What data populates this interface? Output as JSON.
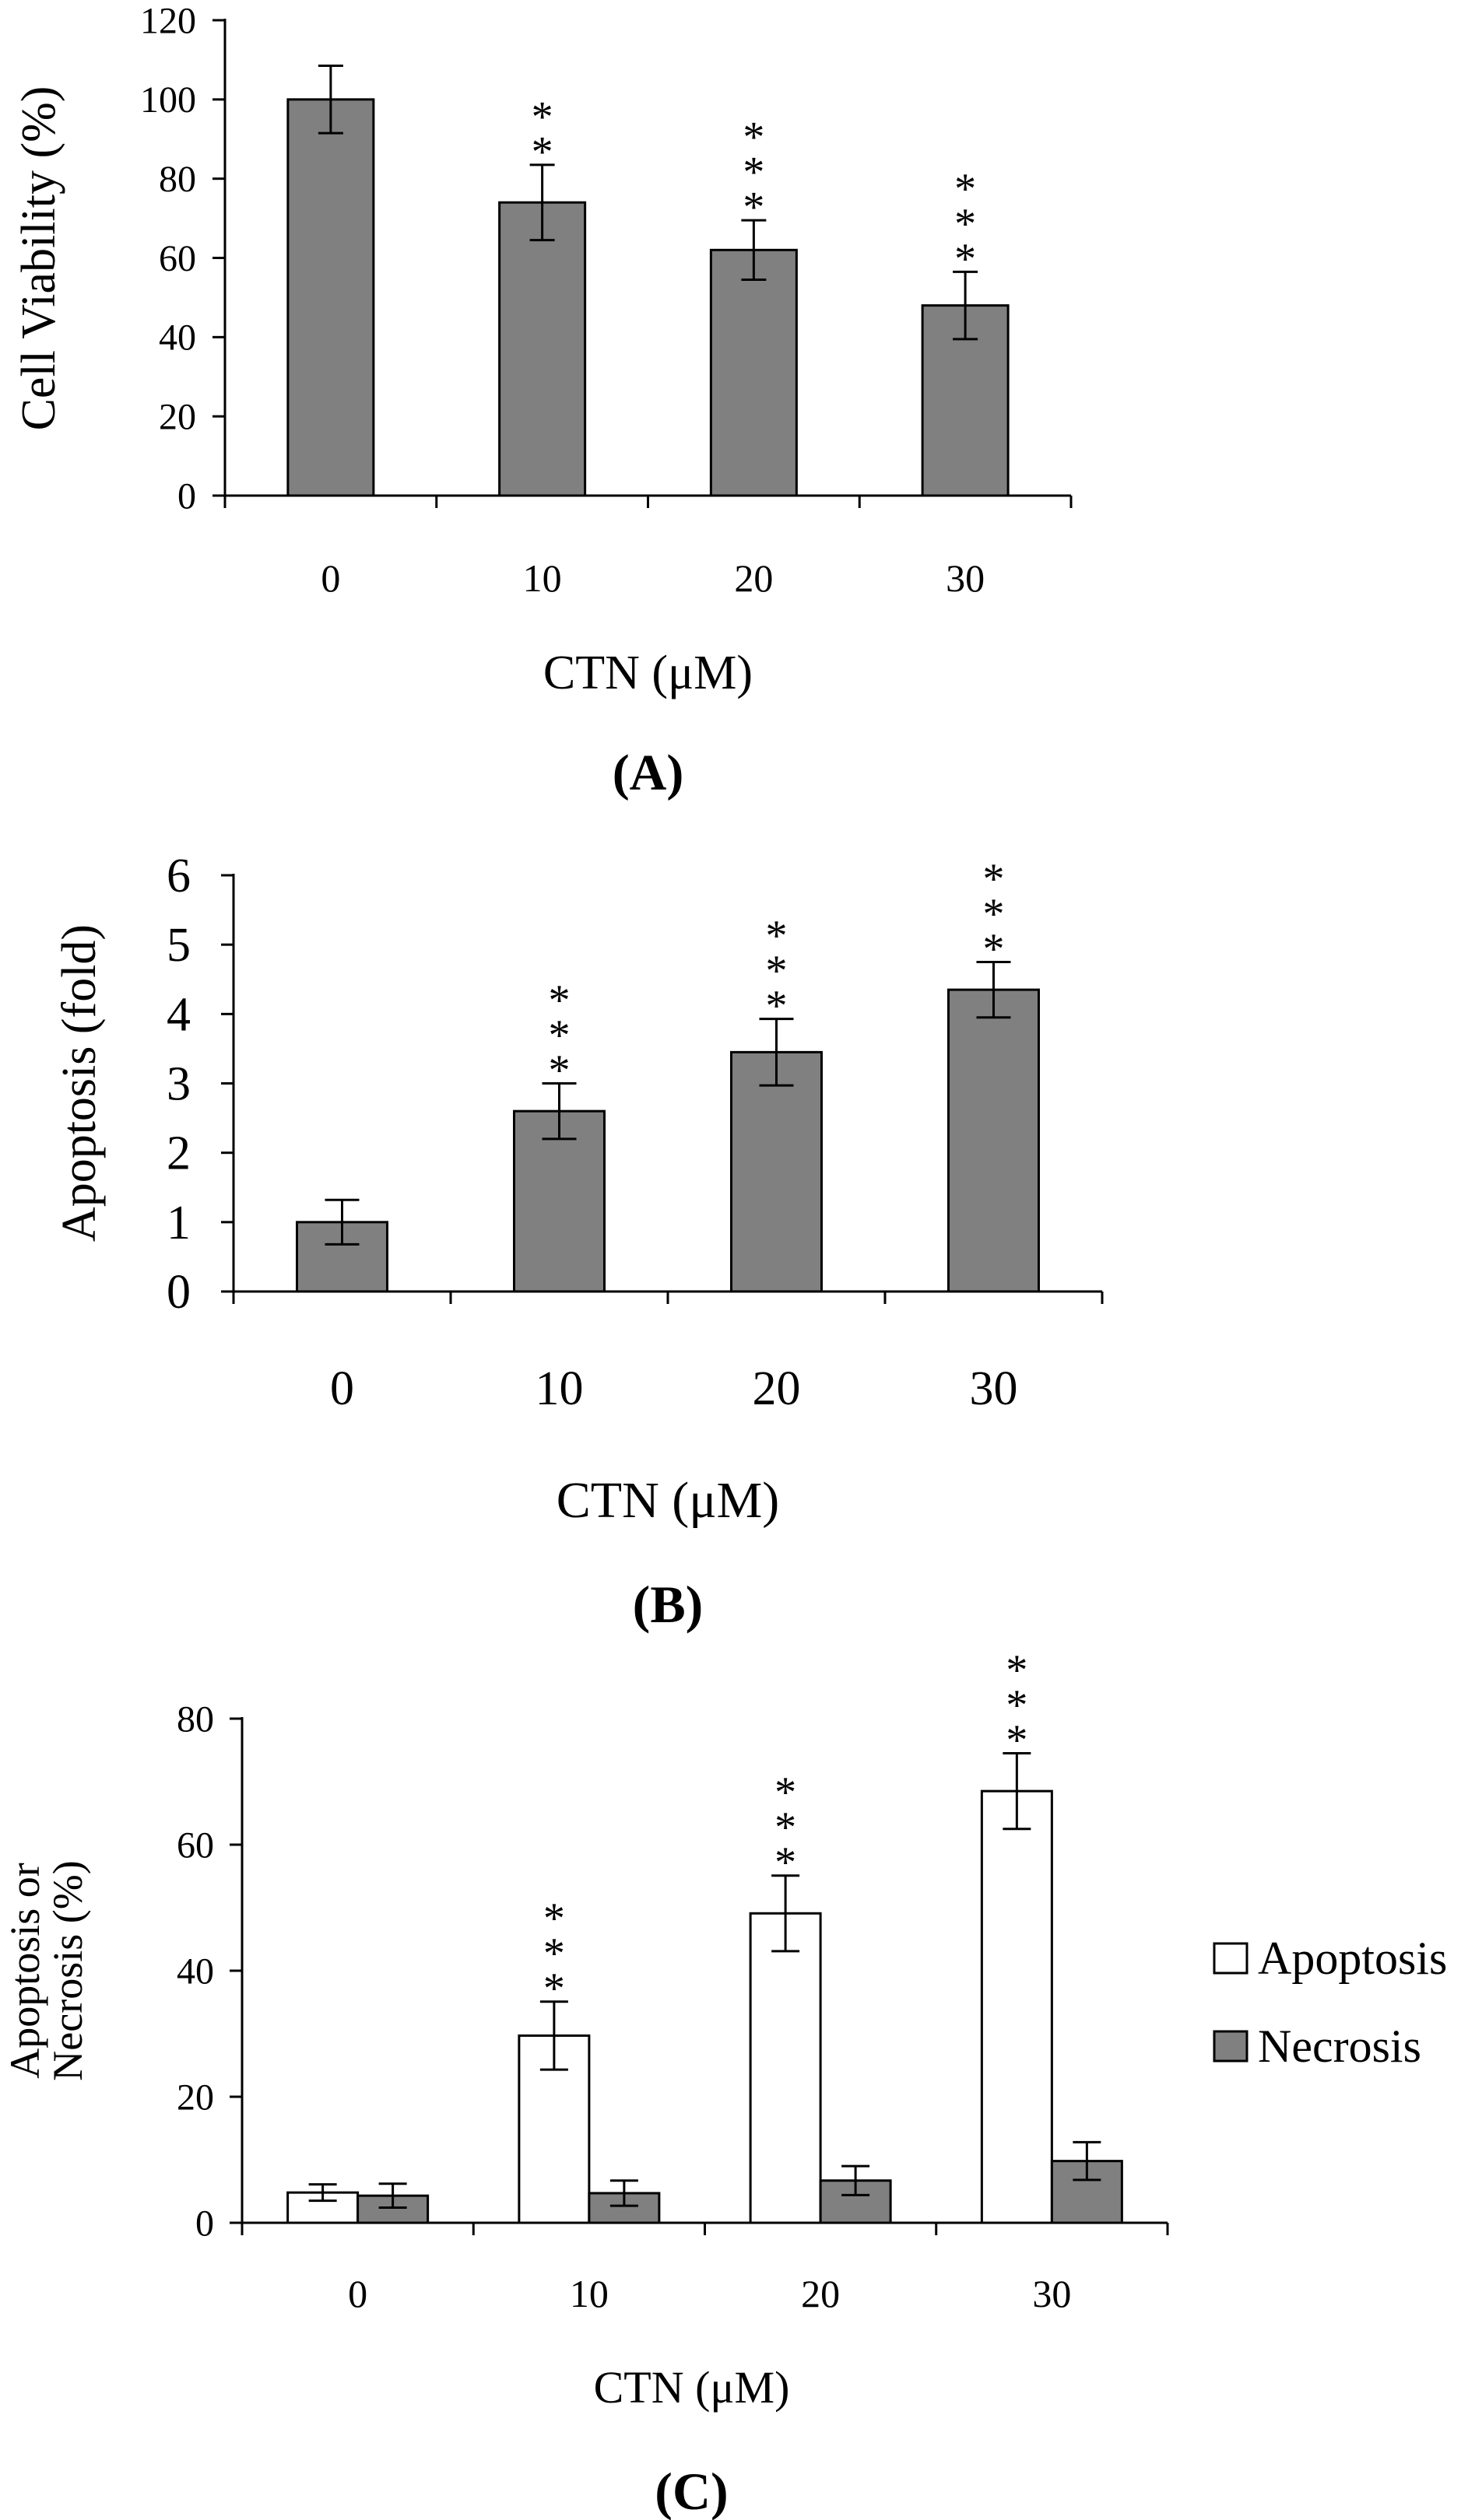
{
  "colors": {
    "bar_fill": "#808080",
    "apoptosis_fill": "#ffffff",
    "necrosis_fill": "#808080",
    "axis": "#000000"
  },
  "chart_data": [
    {
      "id": "A",
      "type": "bar",
      "panel_label": "(A)",
      "xlabel": "CTN (μM)",
      "ylabel": "Cell Viability (%)",
      "ylim": [
        0,
        120
      ],
      "yticks": [
        "0",
        "20",
        "40",
        "60",
        "80",
        "100",
        "120"
      ],
      "categories": [
        "0",
        "10",
        "20",
        "30"
      ],
      "series": [
        {
          "name": "Cell Viability",
          "values": [
            100,
            74,
            62,
            48
          ],
          "errors": [
            8.5,
            9.5,
            7.5,
            8.5
          ],
          "significance": [
            "",
            "**",
            "***",
            "***"
          ]
        }
      ]
    },
    {
      "id": "B",
      "type": "bar",
      "panel_label": "(B)",
      "xlabel": "CTN (μM)",
      "ylabel": "Apoptosis (fold)",
      "ylim": [
        0,
        6
      ],
      "yticks": [
        "0",
        "1",
        "2",
        "3",
        "4",
        "5",
        "6"
      ],
      "categories": [
        "0",
        "10",
        "20",
        "30"
      ],
      "series": [
        {
          "name": "Apoptosis",
          "values": [
            1.0,
            2.6,
            3.45,
            4.35
          ],
          "errors": [
            0.32,
            0.4,
            0.48,
            0.4
          ],
          "significance": [
            "",
            "***",
            "***",
            "***"
          ]
        }
      ]
    },
    {
      "id": "C",
      "type": "bar",
      "panel_label": "(C)",
      "xlabel": "CTN (μM)",
      "ylabel_lines": [
        "Apoptosis or",
        "Necrosis (%)"
      ],
      "ylim": [
        0,
        80
      ],
      "yticks": [
        "0",
        "20",
        "40",
        "60",
        "80"
      ],
      "categories": [
        "0",
        "10",
        "20",
        "30"
      ],
      "legend_position": "right",
      "series": [
        {
          "name": "Apoptosis",
          "values": [
            4.8,
            29.7,
            49.1,
            68.5
          ],
          "errors": [
            1.3,
            5.4,
            6.0,
            6.0
          ],
          "significance": [
            "",
            "***",
            "***",
            "***"
          ]
        },
        {
          "name": "Necrosis",
          "values": [
            4.3,
            4.7,
            6.7,
            9.8
          ],
          "errors": [
            1.9,
            2.0,
            2.3,
            3.0
          ],
          "significance": [
            "",
            "",
            "",
            ""
          ]
        }
      ]
    }
  ]
}
